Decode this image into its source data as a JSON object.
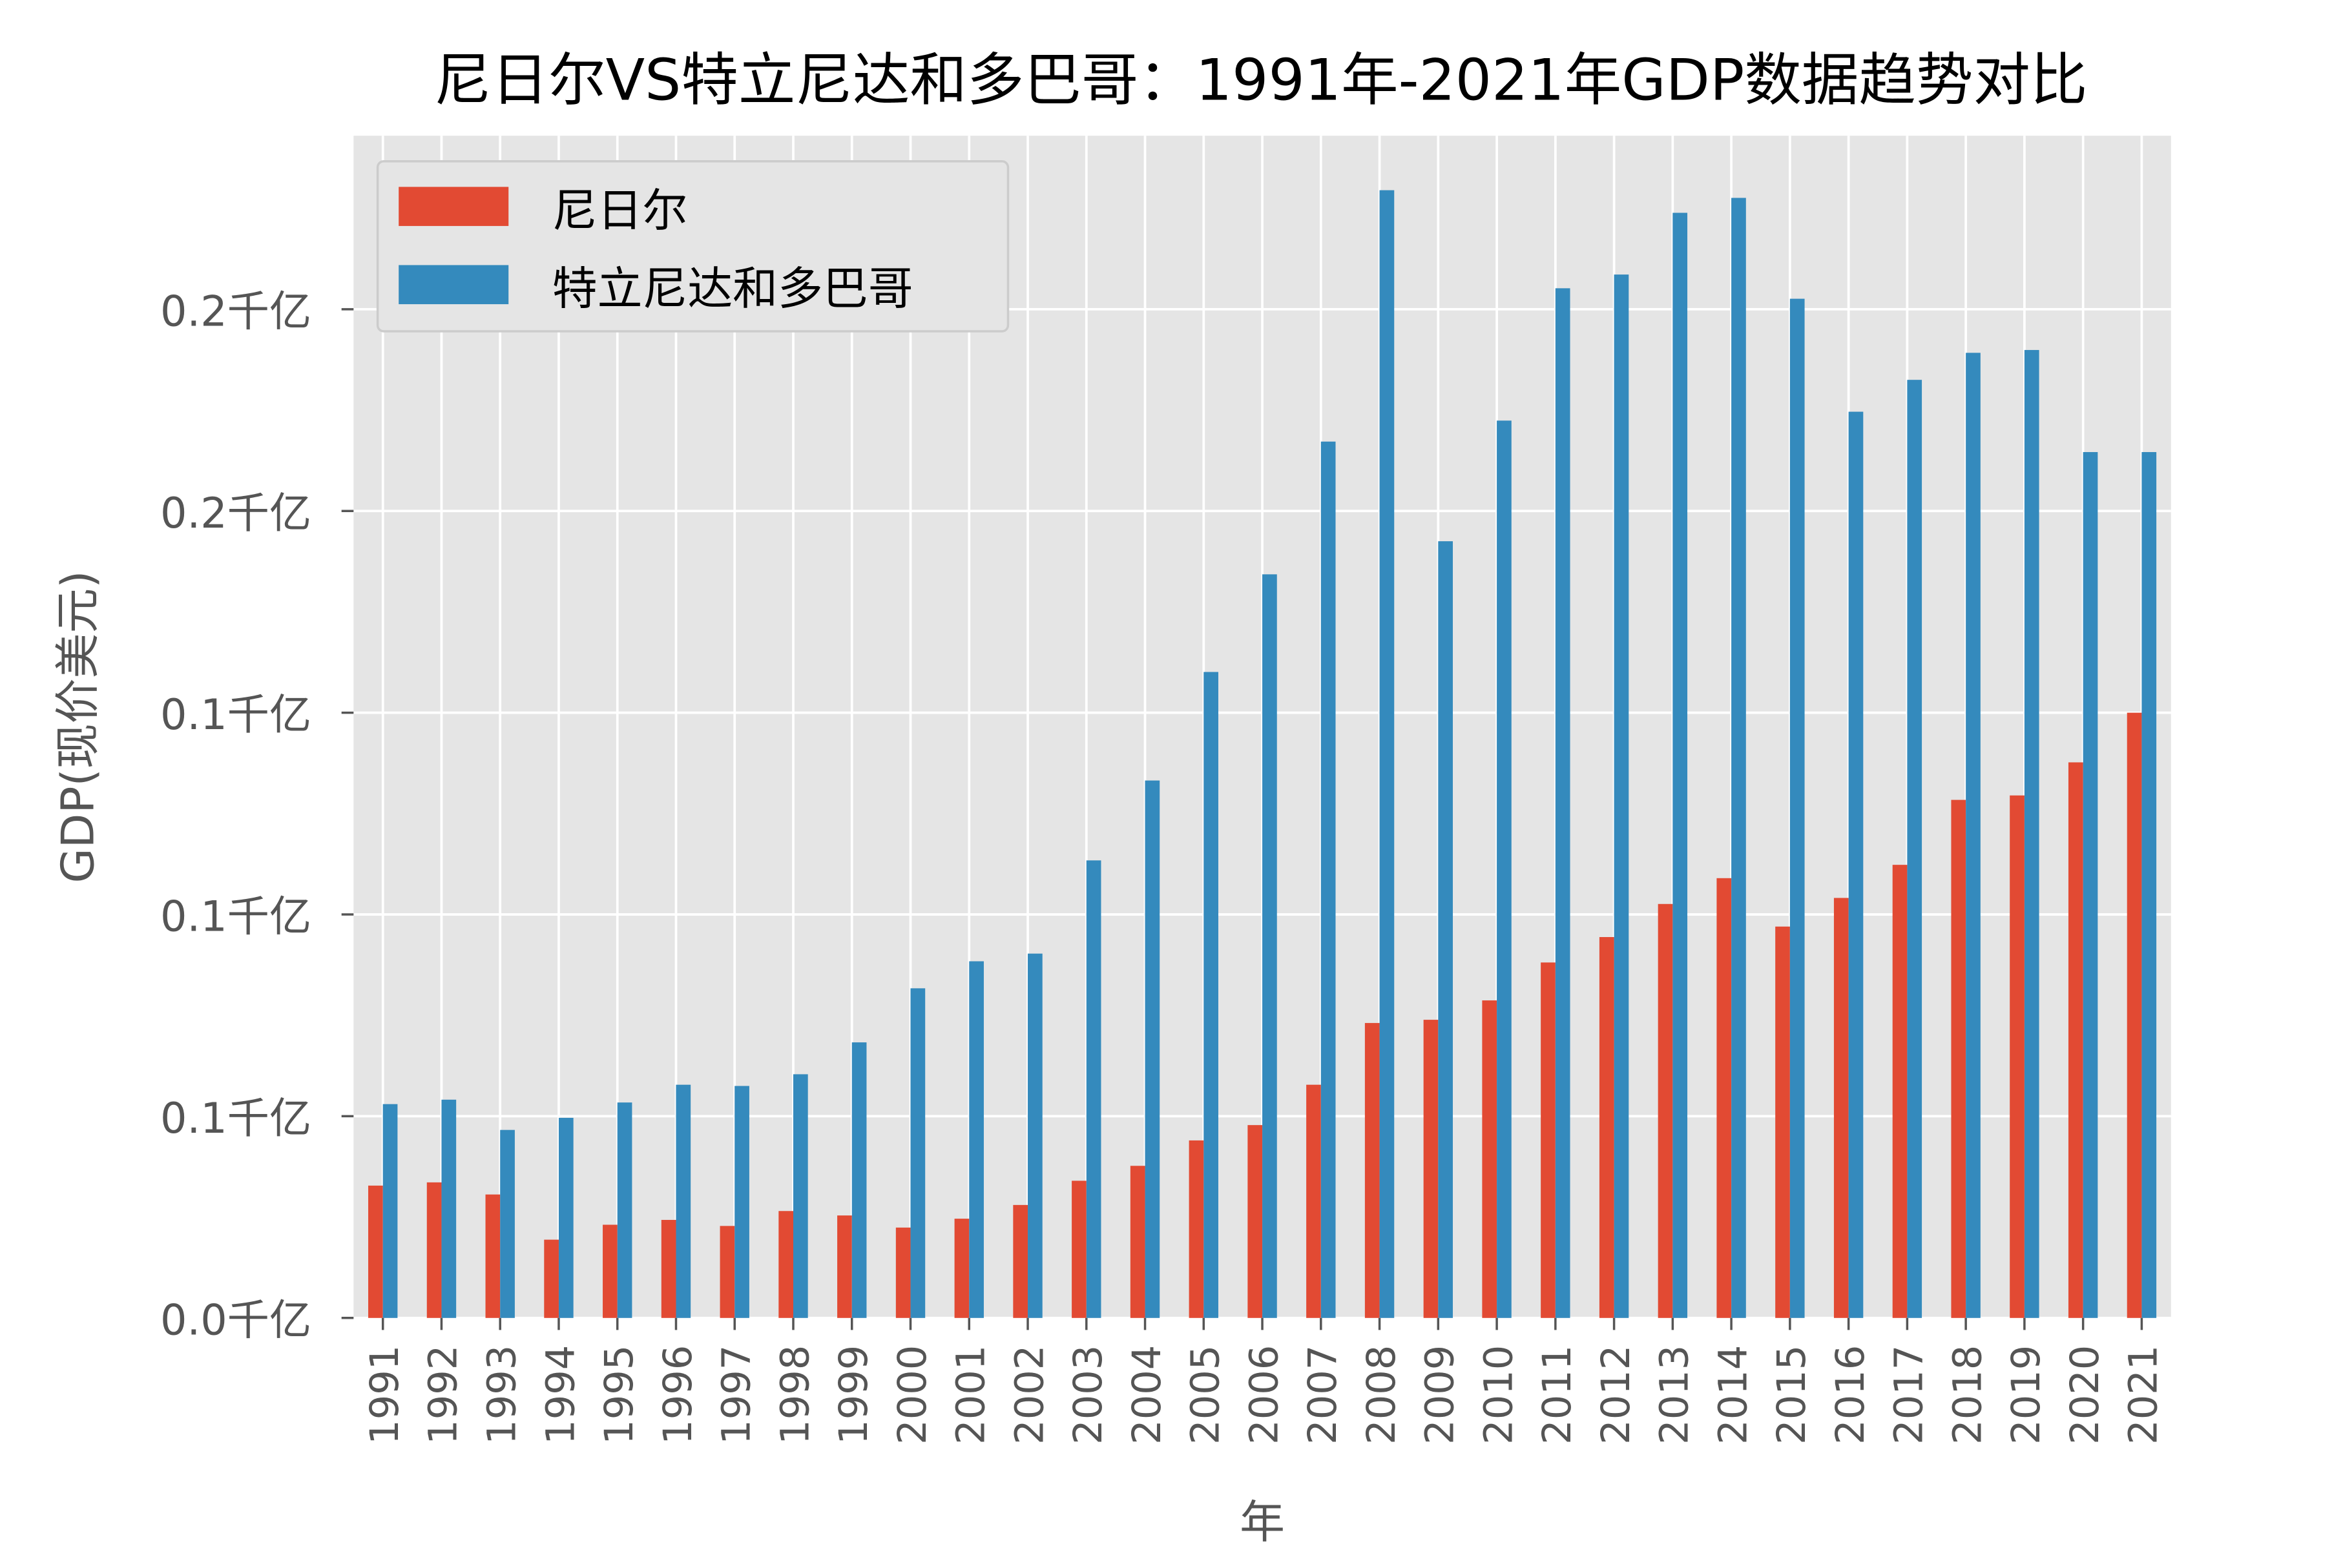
{
  "chart_data": {
    "type": "bar",
    "title": "尼日尔VS特立尼达和多巴哥：1991年-2021年GDP数据趋势对比",
    "xlabel": "年",
    "ylabel": "GDP(现价美元)",
    "ylim": [
      0,
      0.293
    ],
    "yticks": [
      0,
      0.05,
      0.1,
      0.15,
      0.2,
      0.25
    ],
    "ytick_labels": [
      "0.0千亿",
      "0.1千亿",
      "0.1千亿",
      "0.1千亿",
      "0.2千亿",
      "0.2千亿"
    ],
    "grid": true,
    "legend_position": "top-left",
    "categories": [
      "1991",
      "1992",
      "1993",
      "1994",
      "1995",
      "1996",
      "1997",
      "1998",
      "1999",
      "2000",
      "2001",
      "2002",
      "2003",
      "2004",
      "2005",
      "2006",
      "2007",
      "2008",
      "2009",
      "2010",
      "2011",
      "2012",
      "2013",
      "2014",
      "2015",
      "2016",
      "2017",
      "2018",
      "2019",
      "2020",
      "2021"
    ],
    "series": [
      {
        "name": "尼日尔",
        "color": "#E24A33",
        "values": [
          0.0328,
          0.0336,
          0.0306,
          0.0194,
          0.0231,
          0.0243,
          0.0228,
          0.0265,
          0.0254,
          0.0224,
          0.0246,
          0.028,
          0.034,
          0.0377,
          0.044,
          0.0478,
          0.0578,
          0.0731,
          0.0739,
          0.0787,
          0.0881,
          0.0944,
          0.1026,
          0.109,
          0.097,
          0.1041,
          0.1123,
          0.1284,
          0.1295,
          0.1377,
          0.15
        ]
      },
      {
        "name": "特立尼达和多巴哥",
        "color": "#348ABD",
        "values": [
          0.053,
          0.0541,
          0.0466,
          0.0496,
          0.0534,
          0.0578,
          0.0575,
          0.0604,
          0.0683,
          0.0817,
          0.0884,
          0.0903,
          0.1134,
          0.1332,
          0.1601,
          0.1843,
          0.2172,
          0.2795,
          0.1925,
          0.2224,
          0.2552,
          0.2586,
          0.2739,
          0.2776,
          0.2526,
          0.2246,
          0.2325,
          0.2392,
          0.2399,
          0.2146,
          0.2146
        ]
      }
    ]
  }
}
